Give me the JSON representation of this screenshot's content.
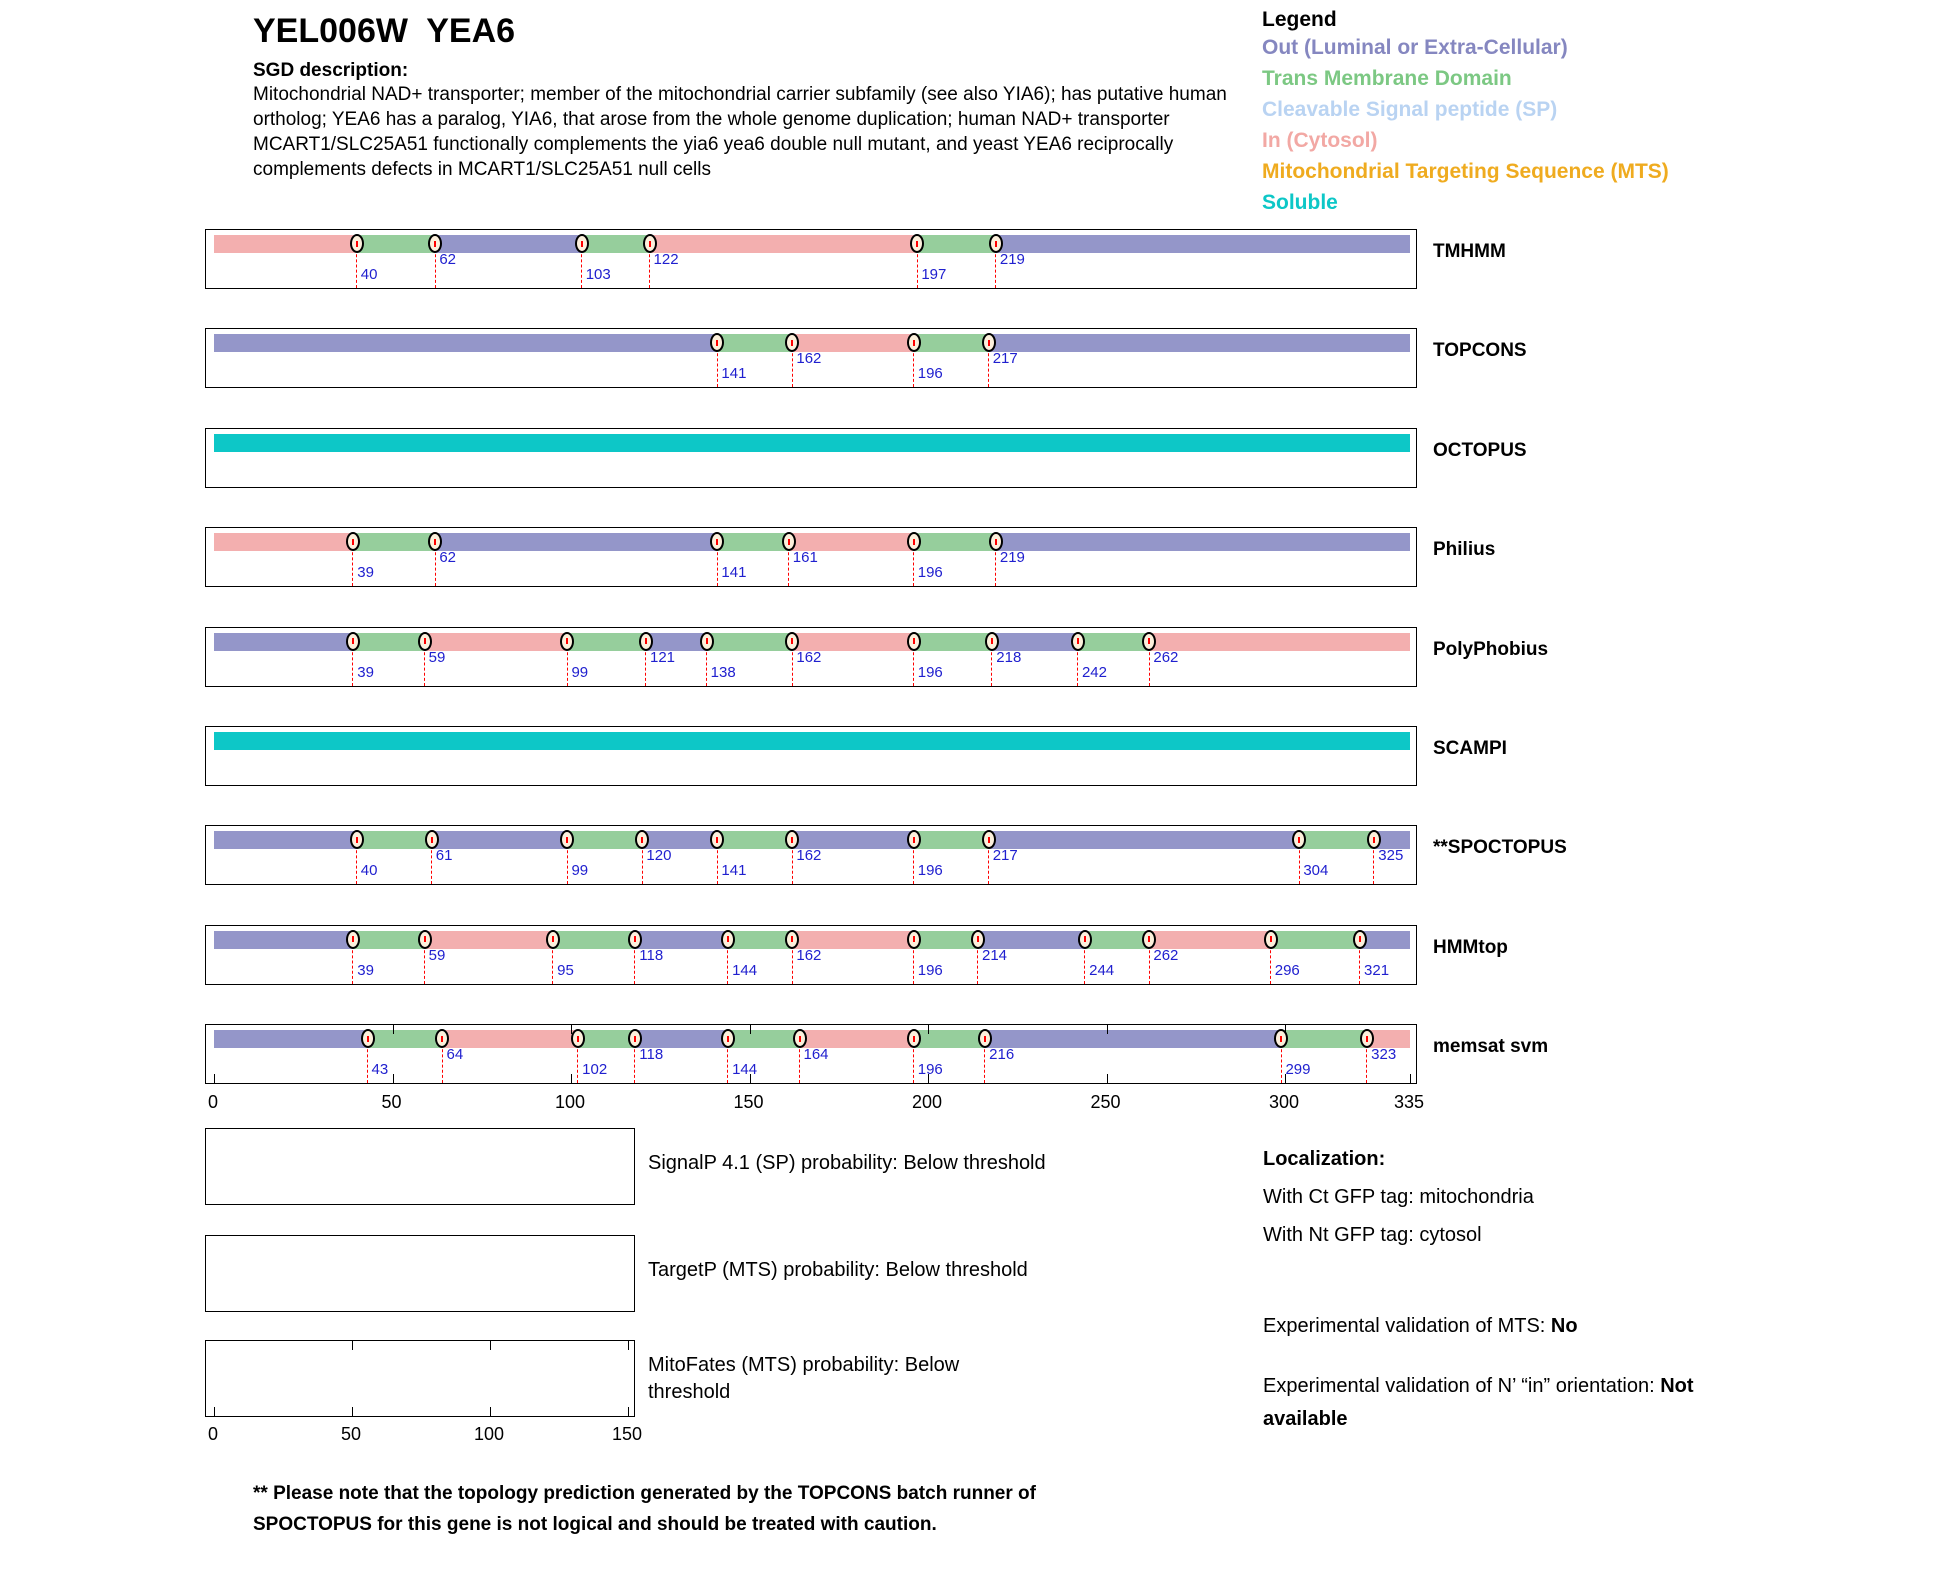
{
  "header": {
    "title": "YEL006W  YEA6",
    "sgd_label": "SGD description:",
    "description": "Mitochondrial NAD+ transporter; member of the mitochondrial carrier subfamily (see also YIA6); has putative human ortholog; YEA6 has a paralog, YIA6, that arose from the whole genome duplication; human NAD+ transporter MCART1/SLC25A51 functionally complements the yia6 yea6 double null mutant, and yeast YEA6 reciprocally complements defects in MCART1/SLC25A51 null cells"
  },
  "legend": {
    "title": "Legend",
    "items": [
      {
        "key": "out",
        "label": "Out (Luminal or Extra-Cellular)",
        "color": "#8587C0"
      },
      {
        "key": "tm",
        "label": "Trans Membrane Domain",
        "color": "#7CC883"
      },
      {
        "key": "sp",
        "label": "Cleavable Signal peptide (SP)",
        "color": "#B9D3F2"
      },
      {
        "key": "in",
        "label": "In (Cytosol)",
        "color": "#F2A8A4"
      },
      {
        "key": "mts",
        "label": "Mitochondrial Targeting Sequence (MTS)",
        "color": "#EFAB1F"
      },
      {
        "key": "soluble",
        "label": "Soluble",
        "color": "#0DC7C7"
      }
    ]
  },
  "chart_data": {
    "type": "topology-track-chart",
    "x_domain": [
      0,
      335
    ],
    "x_axis_ticks": [
      0,
      50,
      100,
      150,
      200,
      250,
      300,
      335
    ],
    "region_colors": {
      "in": "#F3AFAF",
      "tm": "#96CE9C",
      "out": "#9496C9",
      "soluble": "#0DC7C7"
    },
    "boundary_label_color": "#2020CF",
    "boundary_line_color": "#FF0000",
    "tracks": [
      {
        "name": "TMHMM",
        "segments": [
          {
            "region": "in",
            "start": 0,
            "end": 40
          },
          {
            "region": "tm",
            "start": 40,
            "end": 62
          },
          {
            "region": "out",
            "start": 62,
            "end": 103
          },
          {
            "region": "tm",
            "start": 103,
            "end": 122
          },
          {
            "region": "in",
            "start": 122,
            "end": 197
          },
          {
            "region": "tm",
            "start": 197,
            "end": 219
          },
          {
            "region": "out",
            "start": 219,
            "end": 335
          }
        ],
        "boundaries": [
          {
            "pos": 40,
            "row": "low"
          },
          {
            "pos": 62,
            "row": "high"
          },
          {
            "pos": 103,
            "row": "low"
          },
          {
            "pos": 122,
            "row": "high"
          },
          {
            "pos": 197,
            "row": "low"
          },
          {
            "pos": 219,
            "row": "high"
          }
        ]
      },
      {
        "name": "TOPCONS",
        "segments": [
          {
            "region": "out",
            "start": 0,
            "end": 141
          },
          {
            "region": "tm",
            "start": 141,
            "end": 162
          },
          {
            "region": "in",
            "start": 162,
            "end": 196
          },
          {
            "region": "tm",
            "start": 196,
            "end": 217
          },
          {
            "region": "out",
            "start": 217,
            "end": 335
          }
        ],
        "boundaries": [
          {
            "pos": 141,
            "row": "low"
          },
          {
            "pos": 162,
            "row": "high"
          },
          {
            "pos": 196,
            "row": "low"
          },
          {
            "pos": 217,
            "row": "high"
          }
        ]
      },
      {
        "name": "OCTOPUS",
        "segments": [
          {
            "region": "soluble",
            "start": 0,
            "end": 335
          }
        ],
        "boundaries": []
      },
      {
        "name": "Philius",
        "segments": [
          {
            "region": "in",
            "start": 0,
            "end": 39
          },
          {
            "region": "tm",
            "start": 39,
            "end": 62
          },
          {
            "region": "out",
            "start": 62,
            "end": 141
          },
          {
            "region": "tm",
            "start": 141,
            "end": 161
          },
          {
            "region": "in",
            "start": 161,
            "end": 196
          },
          {
            "region": "tm",
            "start": 196,
            "end": 219
          },
          {
            "region": "out",
            "start": 219,
            "end": 335
          }
        ],
        "boundaries": [
          {
            "pos": 39,
            "row": "low"
          },
          {
            "pos": 62,
            "row": "high"
          },
          {
            "pos": 141,
            "row": "low"
          },
          {
            "pos": 161,
            "row": "high"
          },
          {
            "pos": 196,
            "row": "low"
          },
          {
            "pos": 219,
            "row": "high"
          }
        ]
      },
      {
        "name": "PolyPhobius",
        "segments": [
          {
            "region": "out",
            "start": 0,
            "end": 39
          },
          {
            "region": "tm",
            "start": 39,
            "end": 59
          },
          {
            "region": "in",
            "start": 59,
            "end": 99
          },
          {
            "region": "tm",
            "start": 99,
            "end": 121
          },
          {
            "region": "out",
            "start": 121,
            "end": 138
          },
          {
            "region": "tm",
            "start": 138,
            "end": 162
          },
          {
            "region": "in",
            "start": 162,
            "end": 196
          },
          {
            "region": "tm",
            "start": 196,
            "end": 218
          },
          {
            "region": "out",
            "start": 218,
            "end": 242
          },
          {
            "region": "tm",
            "start": 242,
            "end": 262
          },
          {
            "region": "in",
            "start": 262,
            "end": 335
          }
        ],
        "boundaries": [
          {
            "pos": 39,
            "row": "low"
          },
          {
            "pos": 59,
            "row": "high"
          },
          {
            "pos": 99,
            "row": "low"
          },
          {
            "pos": 121,
            "row": "high"
          },
          {
            "pos": 138,
            "row": "low"
          },
          {
            "pos": 162,
            "row": "high"
          },
          {
            "pos": 196,
            "row": "low"
          },
          {
            "pos": 218,
            "row": "high"
          },
          {
            "pos": 242,
            "row": "low"
          },
          {
            "pos": 262,
            "row": "high"
          }
        ]
      },
      {
        "name": "SCAMPI",
        "segments": [
          {
            "region": "soluble",
            "start": 0,
            "end": 335
          }
        ],
        "boundaries": []
      },
      {
        "name": "**SPOCTOPUS",
        "segments": [
          {
            "region": "out",
            "start": 0,
            "end": 40
          },
          {
            "region": "tm",
            "start": 40,
            "end": 61
          },
          {
            "region": "out",
            "start": 61,
            "end": 99
          },
          {
            "region": "tm",
            "start": 99,
            "end": 120
          },
          {
            "region": "out",
            "start": 120,
            "end": 141
          },
          {
            "region": "tm",
            "start": 141,
            "end": 162
          },
          {
            "region": "out",
            "start": 162,
            "end": 196
          },
          {
            "region": "tm",
            "start": 196,
            "end": 217
          },
          {
            "region": "out",
            "start": 217,
            "end": 304
          },
          {
            "region": "tm",
            "start": 304,
            "end": 325
          },
          {
            "region": "out",
            "start": 325,
            "end": 335
          }
        ],
        "boundaries": [
          {
            "pos": 40,
            "row": "low"
          },
          {
            "pos": 61,
            "row": "high"
          },
          {
            "pos": 99,
            "row": "low"
          },
          {
            "pos": 120,
            "row": "high"
          },
          {
            "pos": 141,
            "row": "low"
          },
          {
            "pos": 162,
            "row": "high"
          },
          {
            "pos": 196,
            "row": "low"
          },
          {
            "pos": 217,
            "row": "high"
          },
          {
            "pos": 304,
            "row": "low"
          },
          {
            "pos": 325,
            "row": "high"
          }
        ]
      },
      {
        "name": "HMMtop",
        "segments": [
          {
            "region": "out",
            "start": 0,
            "end": 39
          },
          {
            "region": "tm",
            "start": 39,
            "end": 59
          },
          {
            "region": "in",
            "start": 59,
            "end": 95
          },
          {
            "region": "tm",
            "start": 95,
            "end": 118
          },
          {
            "region": "out",
            "start": 118,
            "end": 144
          },
          {
            "region": "tm",
            "start": 144,
            "end": 162
          },
          {
            "region": "in",
            "start": 162,
            "end": 196
          },
          {
            "region": "tm",
            "start": 196,
            "end": 214
          },
          {
            "region": "out",
            "start": 214,
            "end": 244
          },
          {
            "region": "tm",
            "start": 244,
            "end": 262
          },
          {
            "region": "in",
            "start": 262,
            "end": 296
          },
          {
            "region": "tm",
            "start": 296,
            "end": 321
          },
          {
            "region": "out",
            "start": 321,
            "end": 335
          }
        ],
        "boundaries": [
          {
            "pos": 39,
            "row": "low"
          },
          {
            "pos": 59,
            "row": "high"
          },
          {
            "pos": 95,
            "row": "low"
          },
          {
            "pos": 118,
            "row": "high"
          },
          {
            "pos": 144,
            "row": "low"
          },
          {
            "pos": 162,
            "row": "high"
          },
          {
            "pos": 196,
            "row": "low"
          },
          {
            "pos": 214,
            "row": "high"
          },
          {
            "pos": 244,
            "row": "low"
          },
          {
            "pos": 262,
            "row": "high"
          },
          {
            "pos": 296,
            "row": "low"
          },
          {
            "pos": 321,
            "row": "low"
          }
        ]
      },
      {
        "name": "memsat svm",
        "frame_ticks": true,
        "segments": [
          {
            "region": "out",
            "start": 0,
            "end": 43
          },
          {
            "region": "tm",
            "start": 43,
            "end": 64
          },
          {
            "region": "in",
            "start": 64,
            "end": 102
          },
          {
            "region": "tm",
            "start": 102,
            "end": 118
          },
          {
            "region": "out",
            "start": 118,
            "end": 144
          },
          {
            "region": "tm",
            "start": 144,
            "end": 164
          },
          {
            "region": "in",
            "start": 164,
            "end": 196
          },
          {
            "region": "tm",
            "start": 196,
            "end": 216
          },
          {
            "region": "out",
            "start": 216,
            "end": 299
          },
          {
            "region": "tm",
            "start": 299,
            "end": 323
          },
          {
            "region": "in",
            "start": 323,
            "end": 335
          }
        ],
        "boundaries": [
          {
            "pos": 43,
            "row": "low"
          },
          {
            "pos": 64,
            "row": "high"
          },
          {
            "pos": 102,
            "row": "low"
          },
          {
            "pos": 118,
            "row": "high"
          },
          {
            "pos": 144,
            "row": "low"
          },
          {
            "pos": 164,
            "row": "high"
          },
          {
            "pos": 196,
            "row": "low"
          },
          {
            "pos": 216,
            "row": "high"
          },
          {
            "pos": 299,
            "row": "low"
          },
          {
            "pos": 323,
            "row": "high"
          }
        ]
      }
    ]
  },
  "probability_plots": [
    {
      "label": "SignalP 4.1 (SP) probability: Below threshold",
      "has_axis": false
    },
    {
      "label": "TargetP (MTS) probability: Below threshold",
      "has_axis": false
    },
    {
      "label": "MitoFates (MTS) probability: Below threshold",
      "has_axis": true,
      "x_domain": [
        0,
        150
      ],
      "axis_ticks": [
        0,
        50,
        100,
        150
      ]
    }
  ],
  "localization": {
    "title": "Localization:",
    "gfp_lines": [
      "With Ct GFP tag: mitochondria",
      "With Nt GFP tag: cytosol"
    ],
    "validations": [
      {
        "prefix": "Experimental validation of MTS: ",
        "value": "No"
      },
      {
        "prefix": "Experimental validation of N’ “in” orientation: ",
        "value": "Not available"
      }
    ]
  },
  "footnote": {
    "text": "** Please note that the topology prediction generated by the TOPCONS batch runner of SPOCTOPUS for this gene is not logical and should be treated with caution."
  }
}
